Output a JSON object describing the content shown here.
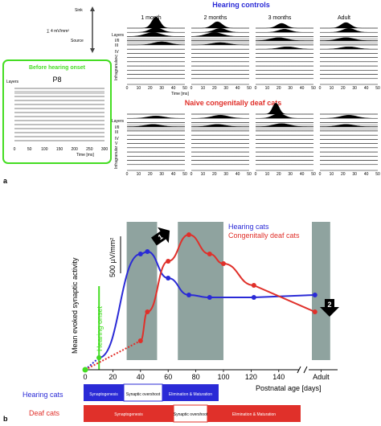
{
  "panel_a": {
    "label": "a",
    "scale": {
      "sink": "Sink",
      "formula": "∑ 4 mV/mm²",
      "source": "Source"
    },
    "before": {
      "title": "Before hearing onset",
      "age": "P8",
      "layers_label": "Layers",
      "ticks": [
        "0",
        "50",
        "100",
        "150",
        "200",
        "250",
        "300"
      ],
      "time_label": "Time [ms]"
    },
    "hearing_controls": {
      "title": "Hearing controls",
      "ages": [
        "1 month",
        "2 months",
        "3 months",
        "Adult"
      ],
      "layers_label": "Layers",
      "ticks": [
        "0",
        "10",
        "20",
        "30",
        "40",
        "50"
      ],
      "time_label": "Time [ms]"
    },
    "deaf": {
      "title": "Naive congenitally deaf cats",
      "layers_label": "Layers",
      "ticks": [
        "0",
        "10",
        "20",
        "30",
        "40",
        "50"
      ],
      "time_label": "Time [ms]"
    },
    "layer_marks": [
      "I/II",
      "III",
      "IV",
      "V",
      "Infragranular"
    ]
  },
  "panel_b": {
    "label": "b",
    "colors": {
      "hearing": "#2a2ad6",
      "deaf": "#e0302a",
      "onset": "#44dd22",
      "band": "#8fa39f"
    },
    "chart_data": {
      "type": "line",
      "title": "",
      "xlabel": "Postnatal age [days]",
      "ylabel": "Mean evoked synaptic activity",
      "x_ticks": [
        "0",
        "20",
        "40",
        "60",
        "80",
        "100",
        "120",
        "140",
        "Adult"
      ],
      "xlim": [
        0,
        180
      ],
      "scale_bar": "500 µV/mm²",
      "hearing_onset": {
        "label": "Hearing onset",
        "x": 10
      },
      "bands": [
        [
          30,
          52
        ],
        [
          67,
          100
        ],
        [
          168,
          180
        ]
      ],
      "markers": [
        "1",
        "2"
      ],
      "series": [
        {
          "name": "Hearing cats",
          "color": "#2a2ad6",
          "x": [
            0,
            10,
            40,
            45,
            60,
            75,
            90,
            122,
            170
          ],
          "y": [
            0,
            5,
            48,
            49,
            38,
            31,
            30,
            30,
            31
          ],
          "dotted_until": 10
        },
        {
          "name": "Congenitally deaf cats",
          "color": "#e0302a",
          "x": [
            0,
            40,
            45,
            60,
            75,
            90,
            100,
            122,
            170
          ],
          "y": [
            0,
            12,
            24,
            45,
            56,
            48,
            44,
            35,
            24
          ],
          "dotted_until": 40
        }
      ]
    },
    "timeline": {
      "hearing_label": "Hearing cats",
      "deaf_label": "Deaf cats",
      "hearing_bars": [
        "Synaptogenesis",
        "Synaptic overshoot",
        "Elimination & Maturation"
      ],
      "deaf_bars": [
        "Synaptogenesis",
        "Synaptic overshoot",
        "Elimination & Maturation"
      ]
    }
  }
}
